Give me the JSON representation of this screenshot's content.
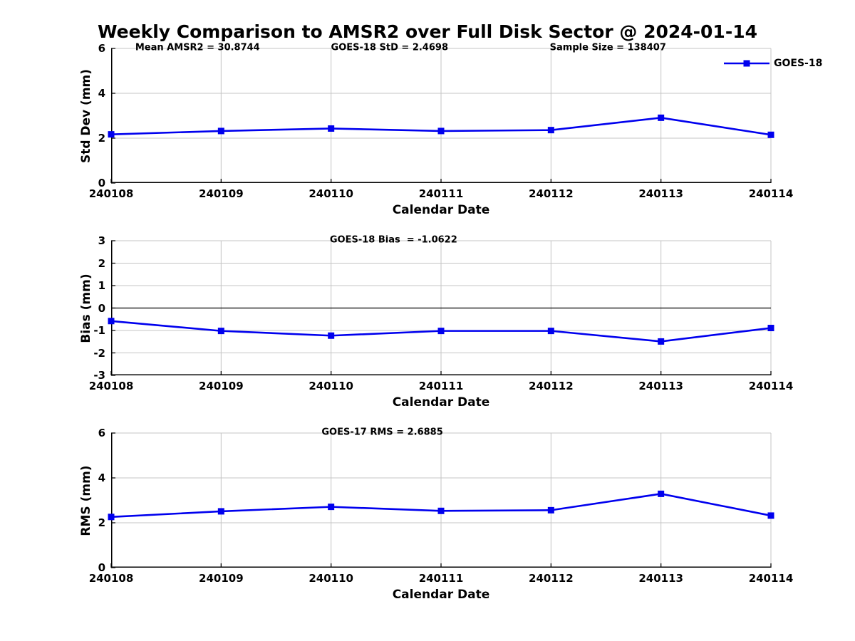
{
  "title": "Weekly Comparison to AMSR2 over Full Disk Sector @ 2024-01-14",
  "colors": {
    "series": "#0000EE",
    "grid": "#C4C4C4",
    "axis": "#000000",
    "zero_line": "#000000",
    "text": "#000000",
    "background": "#FFFFFF"
  },
  "legend": {
    "label": "GOES-18"
  },
  "chart_data": [
    {
      "type": "line",
      "panel": "std-dev",
      "categories": [
        "240108",
        "240109",
        "240110",
        "240111",
        "240112",
        "240113",
        "240114"
      ],
      "series": [
        {
          "name": "GOES-18",
          "values": [
            2.17,
            2.32,
            2.43,
            2.32,
            2.36,
            2.91,
            2.15
          ]
        }
      ],
      "xlabel": "Calendar Date",
      "ylabel": "Std Dev (mm)",
      "ylim": [
        0,
        6
      ],
      "yticks": [
        0,
        2,
        4,
        6
      ],
      "grid": true,
      "marker": "square",
      "annotations": [
        "Mean AMSR2 = 30.8744",
        "GOES-18 StD = 2.4698",
        "Sample Size = 138407"
      ],
      "legend_entries": [
        "GOES-18"
      ],
      "legend_position": "top-right"
    },
    {
      "type": "line",
      "panel": "bias",
      "categories": [
        "240108",
        "240109",
        "240110",
        "240111",
        "240112",
        "240113",
        "240114"
      ],
      "series": [
        {
          "name": "GOES-18",
          "values": [
            -0.58,
            -1.02,
            -1.23,
            -1.02,
            -1.02,
            -1.49,
            -0.89
          ]
        }
      ],
      "xlabel": "Calendar Date",
      "ylabel": "Bias (mm)",
      "ylim": [
        -3,
        3
      ],
      "yticks": [
        -3,
        -2,
        -1,
        0,
        1,
        2,
        3
      ],
      "grid": true,
      "zero_line": true,
      "marker": "square",
      "annotations": [
        "GOES-18 Bias  = -1.0622"
      ]
    },
    {
      "type": "line",
      "panel": "rms",
      "categories": [
        "240108",
        "240109",
        "240110",
        "240111",
        "240112",
        "240113",
        "240114"
      ],
      "series": [
        {
          "name": "GOES-18",
          "values": [
            2.26,
            2.51,
            2.71,
            2.53,
            2.56,
            3.29,
            2.32
          ]
        }
      ],
      "xlabel": "Calendar Date",
      "ylabel": "RMS (mm)",
      "ylim": [
        0,
        6
      ],
      "yticks": [
        0,
        2,
        4,
        6
      ],
      "grid": true,
      "marker": "square",
      "annotations": [
        "GOES-17 RMS = 2.6885"
      ]
    }
  ]
}
